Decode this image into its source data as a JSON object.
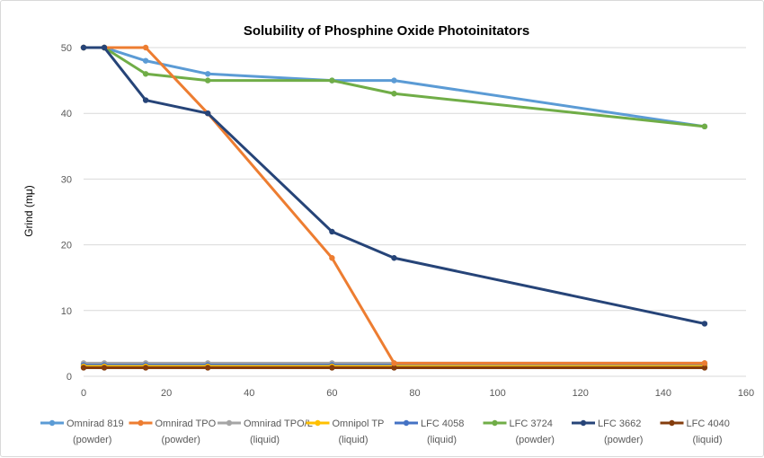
{
  "chart_data": {
    "type": "line",
    "title": "Solubility of Phosphine Oxide Photoinitators",
    "ylabel": "Grind (mμ)",
    "xlabel": "",
    "xlim": [
      0,
      160
    ],
    "ylim": [
      0,
      50
    ],
    "x_ticks": [
      0,
      20,
      40,
      60,
      80,
      100,
      120,
      140,
      160
    ],
    "y_ticks": [
      0,
      10,
      20,
      30,
      40,
      50
    ],
    "grid": "horizontal",
    "legend_position": "bottom",
    "series": [
      {
        "name": "Omnirad 819",
        "sub": "(powder)",
        "color": "#5b9bd5",
        "x": [
          0,
          5,
          15,
          30,
          60,
          75,
          150
        ],
        "y": [
          50,
          50,
          48,
          46,
          45,
          45,
          38
        ]
      },
      {
        "name": "Omnirad TPO",
        "sub": "(powder)",
        "color": "#ed7d31",
        "x": [
          0,
          5,
          15,
          30,
          60,
          75,
          150
        ],
        "y": [
          50,
          50,
          50,
          40,
          18,
          2,
          2
        ]
      },
      {
        "name": "Omnirad TPO/L",
        "sub": "(liquid)",
        "color": "#a5a5a5",
        "x": [
          0,
          5,
          15,
          30,
          60,
          75,
          150
        ],
        "y": [
          2,
          2,
          2,
          2,
          2,
          2,
          2
        ]
      },
      {
        "name": "Omnipol TP",
        "sub": "(liquid)",
        "color": "#ffc000",
        "x": [
          0,
          5,
          15,
          30,
          60,
          75,
          150
        ],
        "y": [
          1.5,
          1.5,
          1.5,
          1.5,
          1.5,
          1.5,
          1.5
        ]
      },
      {
        "name": "LFC 4058",
        "sub": "(liquid)",
        "color": "#4472c4",
        "x": [
          0,
          5,
          15,
          30,
          60,
          75,
          150
        ],
        "y": [
          1.7,
          1.7,
          1.7,
          1.7,
          1.7,
          1.7,
          1.7
        ]
      },
      {
        "name": "LFC 3724",
        "sub": "(powder)",
        "color": "#70ad47",
        "x": [
          0,
          5,
          15,
          30,
          60,
          75,
          150
        ],
        "y": [
          50,
          50,
          46,
          45,
          45,
          43,
          38
        ]
      },
      {
        "name": "LFC 3662",
        "sub": "(powder)",
        "color": "#264478",
        "x": [
          0,
          5,
          15,
          30,
          60,
          75,
          150
        ],
        "y": [
          50,
          50,
          42,
          40,
          22,
          18,
          8
        ]
      },
      {
        "name": "LFC 4040",
        "sub": "(liquid)",
        "color": "#843c0c",
        "x": [
          0,
          5,
          15,
          30,
          60,
          75,
          150
        ],
        "y": [
          1.3,
          1.3,
          1.3,
          1.3,
          1.3,
          1.3,
          1.3
        ]
      }
    ]
  },
  "colors": {
    "gridline": "#d9d9d9",
    "axis_text": "#595959",
    "title_text": "#000000"
  }
}
